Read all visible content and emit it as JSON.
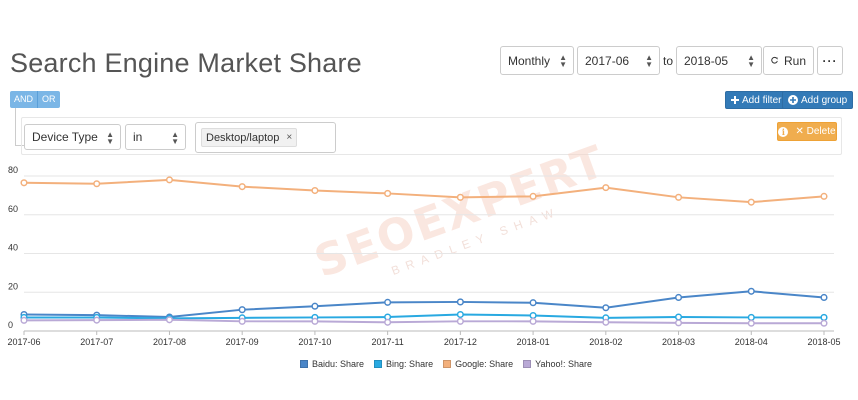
{
  "page": {
    "title": "Search Engine Market Share"
  },
  "controls": {
    "interval": "Monthly",
    "from": "2017-06",
    "to_label": "to",
    "to": "2018-05",
    "run_label": "Run",
    "more_label": "···"
  },
  "query_builder": {
    "and_label": "AND",
    "or_label": "OR",
    "add_filter_label": "Add filter",
    "add_group_label": "Add group",
    "rule": {
      "field": "Device Type",
      "operator": "in",
      "value_tag": "Desktop/laptop",
      "delete_label": "Delete"
    }
  },
  "watermark": {
    "main": "SEOEXPERT",
    "sub": "BRADLEY SHAW"
  },
  "chart_data": {
    "type": "line",
    "categories": [
      "2017-06",
      "2017-07",
      "2017-08",
      "2017-09",
      "2017-10",
      "2017-11",
      "2017-12",
      "2018-01",
      "2018-02",
      "2018-03",
      "2018-04",
      "2018-05"
    ],
    "ylim": [
      0,
      80
    ],
    "yticks": [
      0,
      20,
      40,
      60,
      80
    ],
    "grid": "horizontal",
    "legend_position": "bottom",
    "series": [
      {
        "name": "Baidu: Share",
        "color": "#4a86c8",
        "values": [
          8.5,
          8.2,
          7.2,
          11.0,
          12.8,
          14.8,
          15.0,
          14.6,
          12.0,
          17.3,
          20.5,
          17.3
        ]
      },
      {
        "name": "Bing: Share",
        "color": "#29a9e1",
        "values": [
          7.0,
          7.0,
          6.5,
          6.8,
          7.0,
          7.2,
          8.5,
          8.0,
          6.8,
          7.2,
          7.0,
          7.0
        ]
      },
      {
        "name": "Google: Share",
        "color": "#f3b07c",
        "values": [
          76.5,
          76.0,
          78.0,
          74.5,
          72.5,
          71.0,
          69.0,
          69.5,
          74.0,
          69.0,
          66.5,
          69.5
        ]
      },
      {
        "name": "Yahoo!: Share",
        "color": "#b9a9d6",
        "values": [
          5.5,
          5.6,
          5.8,
          5.0,
          5.0,
          4.5,
          5.0,
          5.0,
          4.5,
          4.2,
          4.0,
          4.0
        ]
      }
    ]
  }
}
